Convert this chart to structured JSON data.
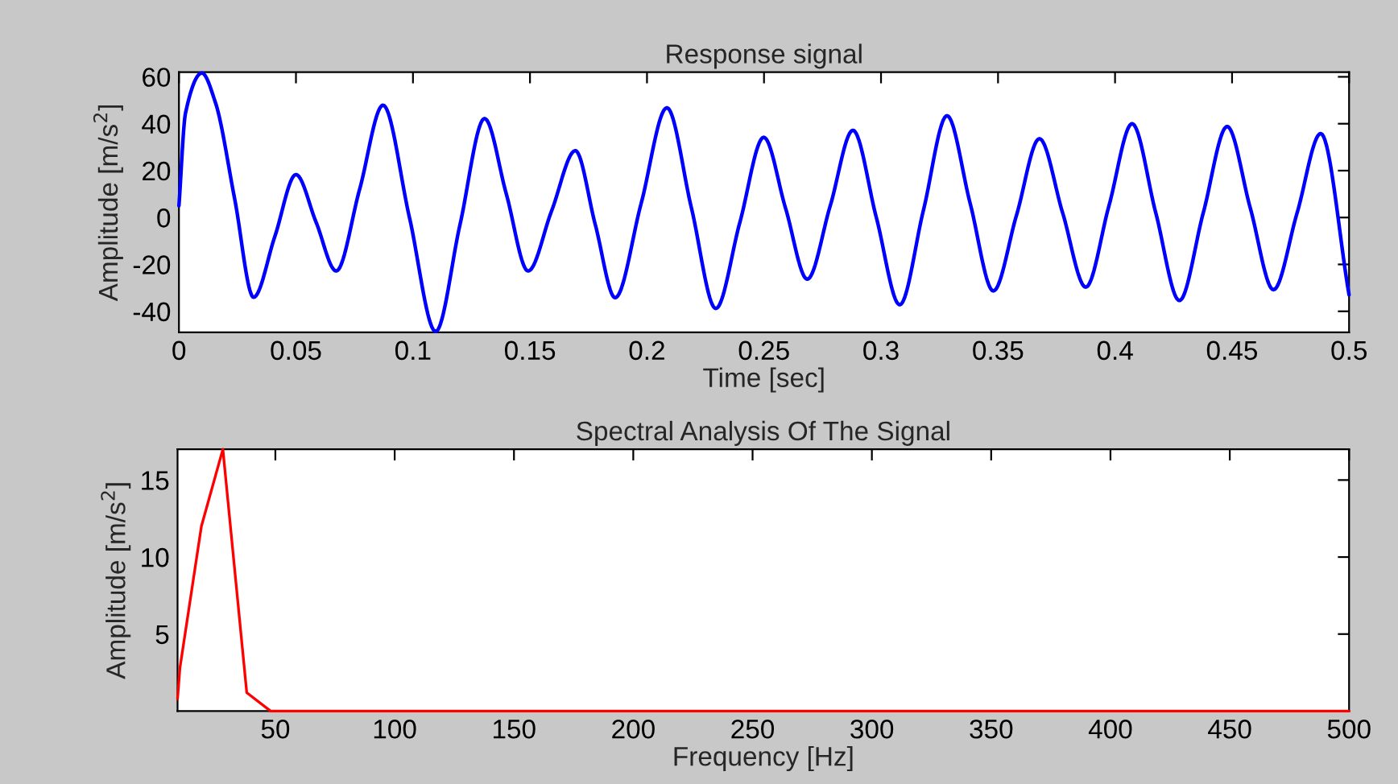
{
  "chart_data": [
    {
      "type": "line",
      "title": "Response signal",
      "xlabel": "Time [sec]",
      "ylabel": "Amplitude [m/s$^{2}$]",
      "xlim": [
        0,
        0.5
      ],
      "xticks": [
        0,
        0.05,
        0.1,
        0.15,
        0.2,
        0.25,
        0.3,
        0.35,
        0.4,
        0.45,
        0.5
      ],
      "ylim": [
        -49,
        62
      ],
      "yticks": [
        -40,
        -20,
        0,
        20,
        40,
        60
      ],
      "grid": false,
      "legend": false,
      "marker": "none",
      "line_style": "solid",
      "series": [
        {
          "color": "#0000ff",
          "x": [
            0,
            0.0028,
            0.0098,
            0.0156,
            0.0238,
            0.0319,
            0.041,
            0.05,
            0.0586,
            0.0672,
            0.0772,
            0.0872,
            0.0985,
            0.1097,
            0.1201,
            0.1306,
            0.1399,
            0.1492,
            0.1593,
            0.1694,
            0.1779,
            0.1864,
            0.1975,
            0.2085,
            0.219,
            0.2294,
            0.2397,
            0.2499,
            0.2592,
            0.2685,
            0.2783,
            0.288,
            0.298,
            0.308,
            0.3181,
            0.3282,
            0.3381,
            0.348,
            0.3579,
            0.3677,
            0.3776,
            0.3875,
            0.3974,
            0.4073,
            0.4174,
            0.4275,
            0.4377,
            0.4479,
            0.4578,
            0.4677,
            0.4778,
            0.4879,
            0.5
          ],
          "values": [
            5,
            44.5,
            61.6,
            49,
            8,
            -34,
            -8,
            18.3,
            -2,
            -22.8,
            12,
            47.9,
            0,
            -48.6,
            -3,
            42.2,
            10,
            -22.8,
            3,
            28.5,
            -3,
            -34.2,
            6,
            46.8,
            4,
            -38.8,
            -2,
            34.2,
            4,
            -26.3,
            5,
            37.2,
            0,
            -37.2,
            3,
            43.4,
            6,
            -31.3,
            1,
            33.6,
            2,
            -29.7,
            5,
            40,
            2,
            -35.4,
            2,
            38.8,
            4,
            -30.8,
            2,
            35.8,
            -33
          ]
        }
      ]
    },
    {
      "type": "line",
      "title": "Spectral Analysis Of The Signal",
      "xlabel": "Frequency [Hz]",
      "ylabel": "Amplitude [m/s$^{2}$]",
      "xlim": [
        9,
        500
      ],
      "xticks": [
        50,
        100,
        150,
        200,
        250,
        300,
        350,
        400,
        450,
        500
      ],
      "ylim": [
        0,
        17
      ],
      "yticks": [
        5,
        10,
        15
      ],
      "grid": false,
      "legend": false,
      "marker": "none",
      "line_style": "solid",
      "series": [
        {
          "color": "#ff0000",
          "x": [
            9,
            10,
            19,
            28,
            38,
            48,
            500
          ],
          "values": [
            0.8,
            2.8,
            12,
            17,
            1.2,
            0,
            0
          ]
        }
      ]
    }
  ]
}
